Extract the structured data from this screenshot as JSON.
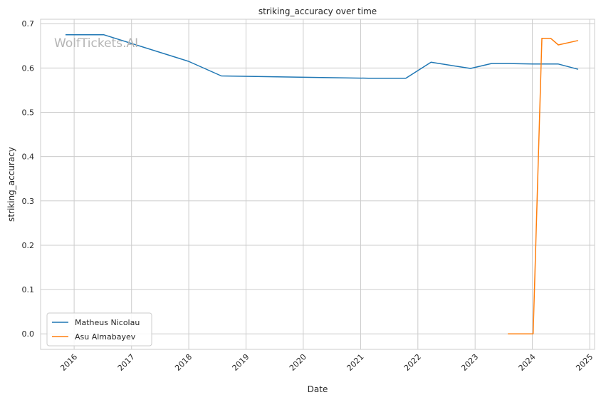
{
  "chart_data": {
    "type": "line",
    "title": "striking_accuracy over time",
    "xlabel": "Date",
    "ylabel": "striking_accuracy",
    "watermark": "WolfTickets.AI",
    "x_axis_kind": "date",
    "xlim": [
      "2015-06-01",
      "2025-02-01"
    ],
    "ylim": [
      -0.035,
      0.71
    ],
    "x_ticks": [
      "2016",
      "2017",
      "2018",
      "2019",
      "2020",
      "2021",
      "2022",
      "2023",
      "2024",
      "2025"
    ],
    "x_tick_dates": [
      "2016-01-01",
      "2017-01-01",
      "2018-01-01",
      "2019-01-01",
      "2020-01-01",
      "2021-01-01",
      "2022-01-01",
      "2023-01-01",
      "2024-01-01",
      "2025-01-01"
    ],
    "y_ticks": [
      0.0,
      0.1,
      0.2,
      0.3,
      0.4,
      0.5,
      0.6,
      0.7
    ],
    "y_tick_labels": [
      "0.0",
      "0.1",
      "0.2",
      "0.3",
      "0.4",
      "0.5",
      "0.6",
      "0.7"
    ],
    "grid": true,
    "legend_position": "lower-left",
    "series": [
      {
        "name": "Matheus Nicolau",
        "color": "#1f77b4",
        "x": [
          "2015-11-07",
          "2016-07-09",
          "2017-12-30",
          "2018-07-28",
          "2021-02-20",
          "2021-10-16",
          "2022-03-26",
          "2022-12-03",
          "2023-04-15",
          "2023-08-05",
          "2024-01-06",
          "2024-06-15",
          "2024-10-19"
        ],
        "y": [
          0.675,
          0.675,
          0.615,
          0.582,
          0.577,
          0.577,
          0.613,
          0.599,
          0.61,
          0.61,
          0.609,
          0.609,
          0.597
        ]
      },
      {
        "name": "Asu Almabayev",
        "color": "#ff7f0e",
        "x": [
          "2023-07-29",
          "2024-01-06",
          "2024-03-02",
          "2024-04-27",
          "2024-06-15",
          "2024-10-19"
        ],
        "y": [
          0.0,
          0.0,
          0.667,
          0.667,
          0.652,
          0.662
        ]
      }
    ]
  }
}
